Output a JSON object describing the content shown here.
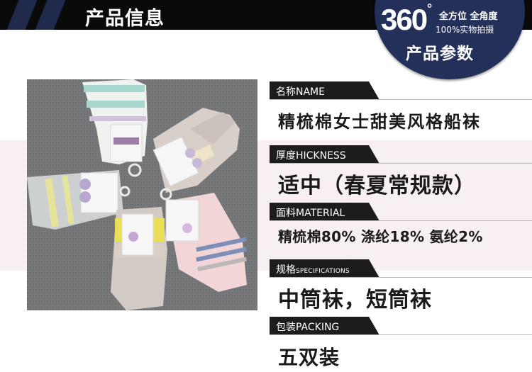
{
  "header": {
    "title": "产品信息"
  },
  "badge": {
    "number": "360",
    "degree": "°",
    "all_angle": "全方位 全角度",
    "real_shot": "100%实物拍摄",
    "params": "产品参数"
  },
  "specs": [
    {
      "label": "名称NAME",
      "label_small": "",
      "value": "精梳棉女士甜美风格船袜"
    },
    {
      "label": "厚度HICKNESS",
      "label_small": "",
      "value": "适中（春夏常规款）"
    },
    {
      "label": "面料MATERIAL",
      "label_small": "",
      "value": "精梳棉80% 涤纶18% 氨纶2%"
    },
    {
      "label": "规格",
      "label_small": "SPECIFICATIONS",
      "value": "中筒袜，短筒袜"
    },
    {
      "label": "包装PACKING",
      "label_small": "",
      "value": "五双装"
    }
  ],
  "colors": {
    "header_bg": "#0a0a0a",
    "header_stripe": "#1f2a4d",
    "badge_bg": "#23305a",
    "label_bg": "#1c1c1c",
    "value_text": "#1a1a1a"
  }
}
